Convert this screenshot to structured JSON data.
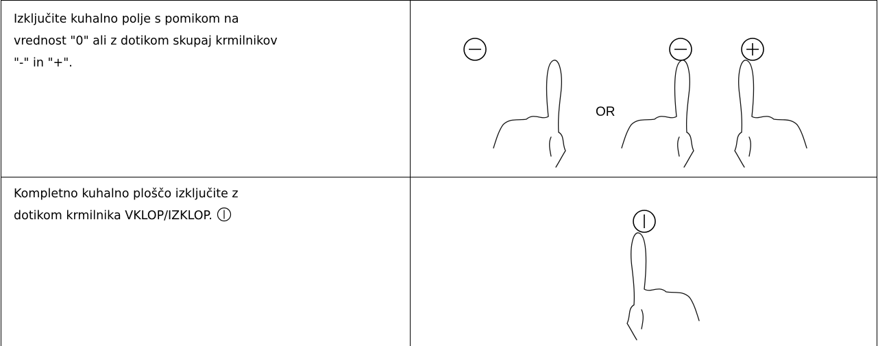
{
  "table": {
    "rows": [
      {
        "text": [
          "Izključite kuhalno polje s pomikom na",
          "vrednost \"0\" ali z dotikom skupaj krmilnikov",
          "\"-\" in \"+\"."
        ],
        "figure_label": "OR"
      },
      {
        "text": [
          "Kompletno kuhalno ploščo izključite z",
          "dotikom krmilnika VKLOP/IZKLOP."
        ]
      }
    ]
  }
}
